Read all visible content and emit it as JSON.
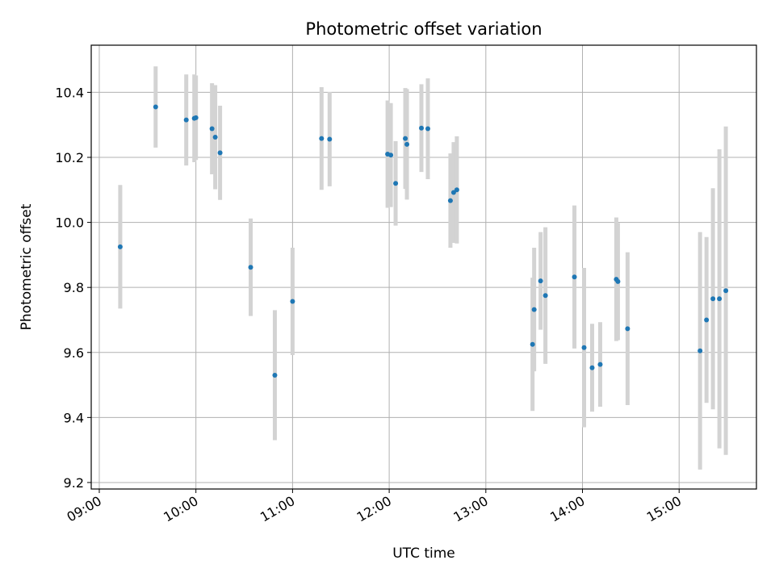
{
  "chart_data": {
    "type": "scatter",
    "title": "Photometric offset variation",
    "xlabel": "UTC time",
    "ylabel": "Photometric offset",
    "x_unit": "time of day (HH:MM, UTC)",
    "xlim": [
      "08:55",
      "15:48"
    ],
    "ylim": [
      9.18,
      10.545
    ],
    "x_ticks": [
      "09:00",
      "10:00",
      "11:00",
      "12:00",
      "13:00",
      "14:00",
      "15:00"
    ],
    "y_ticks": [
      9.2,
      9.4,
      9.6,
      9.8,
      10.0,
      10.2,
      10.4
    ],
    "y_tick_labels": [
      "9.2",
      "9.4",
      "9.6",
      "9.8",
      "10.0",
      "10.2",
      "10.4"
    ],
    "grid": true,
    "point_color": "#1f77b4",
    "errorbar_color": "#d3d3d3",
    "points": [
      {
        "t": "09:13",
        "y": 9.925,
        "err": 0.19
      },
      {
        "t": "09:35",
        "y": 10.355,
        "err": 0.125
      },
      {
        "t": "09:54",
        "y": 10.315,
        "err": 0.14
      },
      {
        "t": "09:59",
        "y": 10.32,
        "err": 0.135
      },
      {
        "t": "10:00",
        "y": 10.322,
        "err": 0.13
      },
      {
        "t": "10:10",
        "y": 10.288,
        "err": 0.14
      },
      {
        "t": "10:12",
        "y": 10.262,
        "err": 0.16
      },
      {
        "t": "10:15",
        "y": 10.214,
        "err": 0.145
      },
      {
        "t": "10:34",
        "y": 9.862,
        "err": 0.15
      },
      {
        "t": "10:49",
        "y": 9.53,
        "err": 0.2
      },
      {
        "t": "11:00",
        "y": 9.757,
        "err": 0.165
      },
      {
        "t": "11:18",
        "y": 10.258,
        "err": 0.158
      },
      {
        "t": "11:23",
        "y": 10.256,
        "err": 0.145
      },
      {
        "t": "11:59",
        "y": 10.21,
        "err": 0.165
      },
      {
        "t": "12:01",
        "y": 10.207,
        "err": 0.16
      },
      {
        "t": "12:04",
        "y": 10.12,
        "err": 0.13
      },
      {
        "t": "12:10",
        "y": 10.258,
        "err": 0.155
      },
      {
        "t": "12:11",
        "y": 10.24,
        "err": 0.17
      },
      {
        "t": "12:20",
        "y": 10.29,
        "err": 0.135
      },
      {
        "t": "12:24",
        "y": 10.288,
        "err": 0.155
      },
      {
        "t": "12:38",
        "y": 10.067,
        "err": 0.145
      },
      {
        "t": "12:40",
        "y": 10.092,
        "err": 0.155
      },
      {
        "t": "12:42",
        "y": 10.1,
        "err": 0.165
      },
      {
        "t": "13:29",
        "y": 9.625,
        "err": 0.205
      },
      {
        "t": "13:30",
        "y": 9.732,
        "err": 0.19
      },
      {
        "t": "13:34",
        "y": 9.82,
        "err": 0.15
      },
      {
        "t": "13:37",
        "y": 9.775,
        "err": 0.21
      },
      {
        "t": "13:55",
        "y": 9.832,
        "err": 0.22
      },
      {
        "t": "14:01",
        "y": 9.615,
        "err": 0.245
      },
      {
        "t": "14:06",
        "y": 9.553,
        "err": 0.135
      },
      {
        "t": "14:11",
        "y": 9.563,
        "err": 0.13
      },
      {
        "t": "14:21",
        "y": 9.825,
        "err": 0.19
      },
      {
        "t": "14:22",
        "y": 9.818,
        "err": 0.18
      },
      {
        "t": "14:28",
        "y": 9.673,
        "err": 0.235
      },
      {
        "t": "15:13",
        "y": 9.605,
        "err": 0.365
      },
      {
        "t": "15:17",
        "y": 9.7,
        "err": 0.255
      },
      {
        "t": "15:21",
        "y": 9.765,
        "err": 0.34
      },
      {
        "t": "15:25",
        "y": 9.765,
        "err": 0.46
      },
      {
        "t": "15:29",
        "y": 9.79,
        "err": 0.505
      }
    ]
  }
}
